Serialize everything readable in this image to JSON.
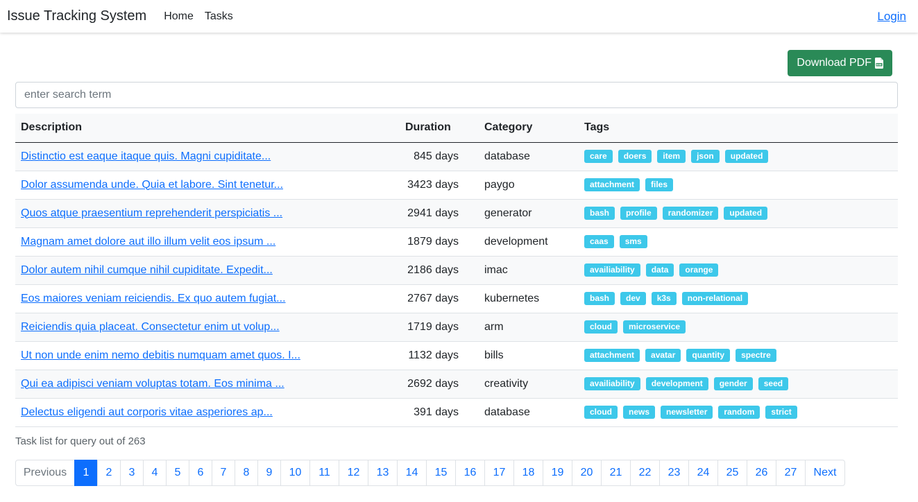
{
  "navbar": {
    "brand": "Issue Tracking System",
    "links": [
      "Home",
      "Tasks"
    ],
    "login": "Login"
  },
  "toolbar": {
    "download_label": "Download PDF",
    "download_icon": "pdf-file-icon"
  },
  "search": {
    "placeholder": "enter search term",
    "value": ""
  },
  "table": {
    "headers": [
      "Description",
      "Duration",
      "Category",
      "Tags"
    ],
    "rows": [
      {
        "description": "Distinctio est eaque itaque quis. Magni cupiditate...",
        "duration": "845 days",
        "category": "database",
        "tags": [
          "care",
          "doers",
          "item",
          "json",
          "updated"
        ]
      },
      {
        "description": "Dolor assumenda unde. Quia et labore. Sint tenetur...",
        "duration": "3423 days",
        "category": "paygo",
        "tags": [
          "attachment",
          "files"
        ]
      },
      {
        "description": "Quos atque praesentium reprehenderit perspiciatis ...",
        "duration": "2941 days",
        "category": "generator",
        "tags": [
          "bash",
          "profile",
          "randomizer",
          "updated"
        ]
      },
      {
        "description": "Magnam amet dolore aut illo illum velit eos ipsum ...",
        "duration": "1879 days",
        "category": "development",
        "tags": [
          "caas",
          "sms"
        ]
      },
      {
        "description": "Dolor autem nihil cumque nihil cupiditate. Expedit...",
        "duration": "2186 days",
        "category": "imac",
        "tags": [
          "availiability",
          "data",
          "orange"
        ]
      },
      {
        "description": "Eos maiores veniam reiciendis. Ex quo autem fugiat...",
        "duration": "2767 days",
        "category": "kubernetes",
        "tags": [
          "bash",
          "dev",
          "k3s",
          "non-relational"
        ]
      },
      {
        "description": "Reiciendis quia placeat. Consectetur enim ut volup...",
        "duration": "1719 days",
        "category": "arm",
        "tags": [
          "cloud",
          "microservice"
        ]
      },
      {
        "description": "Ut non unde enim nemo debitis numquam amet quos. I...",
        "duration": "1132 days",
        "category": "bills",
        "tags": [
          "attachment",
          "avatar",
          "quantity",
          "spectre"
        ]
      },
      {
        "description": "Qui ea adipisci veniam voluptas totam. Eos minima ...",
        "duration": "2692 days",
        "category": "creativity",
        "tags": [
          "availiability",
          "development",
          "gender",
          "seed"
        ]
      },
      {
        "description": "Delectus eligendi aut corporis vitae asperiores ap...",
        "duration": "391 days",
        "category": "database",
        "tags": [
          "cloud",
          "news",
          "newsletter",
          "random",
          "strict"
        ]
      }
    ]
  },
  "summary": "Task list for query out of 263",
  "pagination": {
    "previous": "Previous",
    "next": "Next",
    "active": "1",
    "pages": [
      "1",
      "2",
      "3",
      "4",
      "5",
      "6",
      "7",
      "8",
      "9",
      "10",
      "11",
      "12",
      "13",
      "14",
      "15",
      "16",
      "17",
      "18",
      "19",
      "20",
      "21",
      "22",
      "23",
      "24",
      "25",
      "26",
      "27"
    ]
  },
  "colors": {
    "primary": "#0d6efd",
    "success": "#2a8a57",
    "tag": "#3dc8ea"
  }
}
